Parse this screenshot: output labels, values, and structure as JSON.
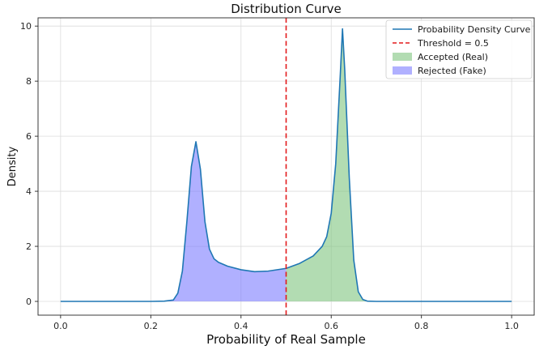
{
  "chart_data": {
    "type": "area",
    "title": "Distribution Curve",
    "xlabel": "Probability of Real Sample",
    "ylabel": "Density",
    "xlim": [
      -0.05,
      1.05
    ],
    "ylim": [
      -0.5,
      10.3
    ],
    "xticks": [
      0.0,
      0.2,
      0.4,
      0.6,
      0.8,
      1.0
    ],
    "xtick_labels": [
      "0.0",
      "0.2",
      "0.4",
      "0.6",
      "0.8",
      "1.0"
    ],
    "yticks": [
      0,
      2,
      4,
      6,
      8,
      10
    ],
    "ytick_labels": [
      "0",
      "2",
      "4",
      "6",
      "8",
      "10"
    ],
    "grid": true,
    "legend_position": "top-right",
    "threshold": 0.5,
    "colors": {
      "curve": "#1f77b4",
      "threshold": "#e31a1c",
      "accepted": "#7fc47f",
      "rejected": "#7b7bff"
    },
    "legend": [
      {
        "label": "Probability Density Curve",
        "kind": "line"
      },
      {
        "label": "Threshold = 0.5",
        "kind": "dashed"
      },
      {
        "label": "Accepted (Real)",
        "kind": "patch-accepted"
      },
      {
        "label": "Rejected (Fake)",
        "kind": "patch-rejected"
      }
    ],
    "series": [
      {
        "name": "Probability Density Curve",
        "x": [
          0.0,
          0.1,
          0.2,
          0.23,
          0.25,
          0.26,
          0.27,
          0.28,
          0.29,
          0.3,
          0.31,
          0.32,
          0.33,
          0.34,
          0.35,
          0.37,
          0.4,
          0.43,
          0.46,
          0.5,
          0.53,
          0.56,
          0.58,
          0.59,
          0.6,
          0.61,
          0.62,
          0.625,
          0.63,
          0.64,
          0.65,
          0.66,
          0.67,
          0.68,
          0.7,
          0.8,
          1.0
        ],
        "y": [
          0.0,
          0.0,
          0.0,
          0.01,
          0.05,
          0.3,
          1.1,
          2.9,
          4.9,
          5.8,
          4.8,
          2.9,
          1.9,
          1.55,
          1.42,
          1.28,
          1.15,
          1.08,
          1.1,
          1.2,
          1.38,
          1.65,
          2.0,
          2.35,
          3.2,
          5.0,
          8.2,
          9.9,
          8.4,
          4.5,
          1.5,
          0.35,
          0.07,
          0.01,
          0.0,
          0.0,
          0.0
        ]
      }
    ]
  }
}
